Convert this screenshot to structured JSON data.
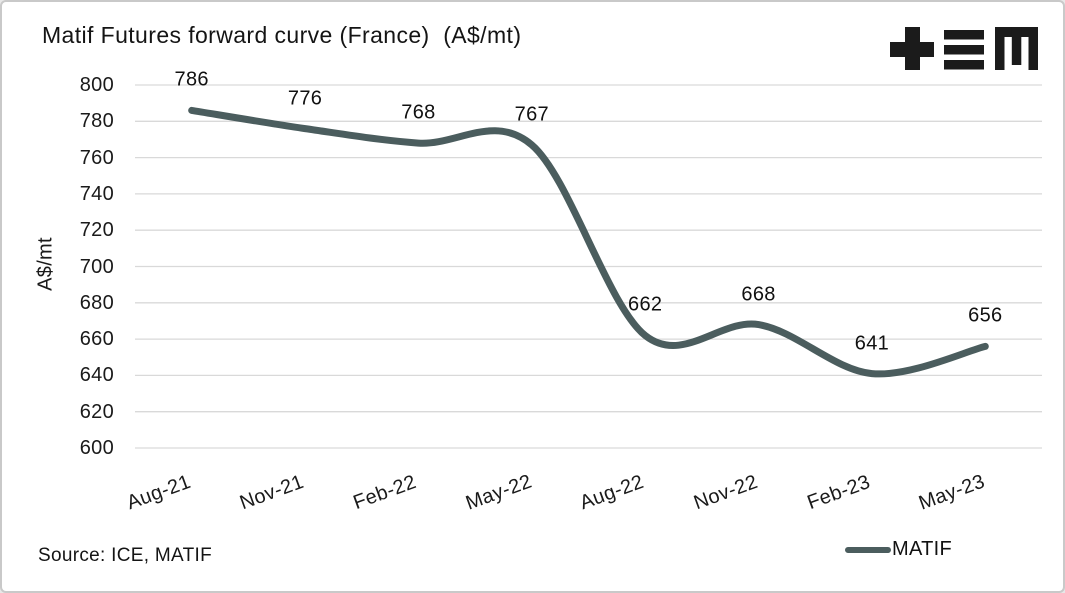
{
  "header": {
    "title": "Matif Futures forward curve (France)  (A$/mt)",
    "logo_name": "TEM logo"
  },
  "chart_data": {
    "type": "line",
    "title": "Matif Futures forward curve (France)  (A$/mt)",
    "categories": [
      "Aug-21",
      "Nov-21",
      "Feb-22",
      "May-22",
      "Aug-22",
      "Nov-22",
      "Feb-23",
      "May-23"
    ],
    "series": [
      {
        "name": "MATIF",
        "values": [
          786,
          776,
          768,
          767,
          662,
          668,
          641,
          656
        ]
      }
    ],
    "data_labels": [
      786,
      776,
      768,
      767,
      662,
      668,
      641,
      656
    ],
    "xlabel": "",
    "ylabel": "A$/mt",
    "ylim": [
      600,
      800
    ],
    "yticks": [
      800,
      780,
      760,
      740,
      720,
      700,
      680,
      660,
      640,
      620,
      600
    ],
    "grid": "horizontal",
    "line_smooth": true,
    "legend_position": "bottom-right"
  },
  "footer": {
    "source": "Source: ICE, MATIF",
    "legend_label": "MATIF"
  },
  "colors": {
    "line": "#4b5d5e",
    "gridline": "#d9d9d9",
    "text": "#141414",
    "logo": "#1b1b1b",
    "border": "#c9c9c9"
  }
}
